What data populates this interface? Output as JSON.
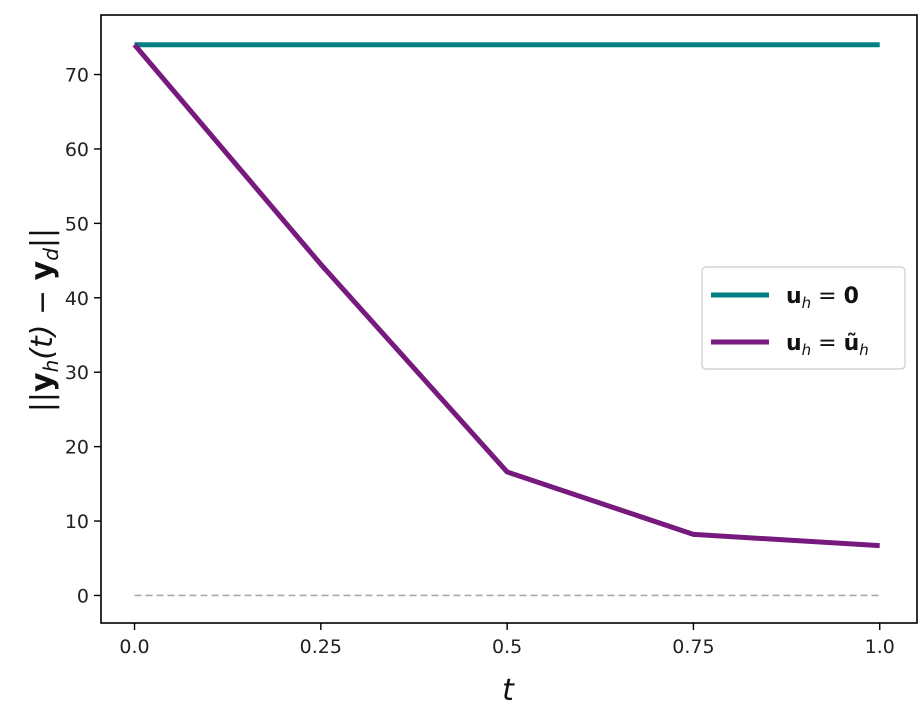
{
  "chart_data": {
    "type": "line",
    "x": [
      0.0,
      0.25,
      0.5,
      0.75,
      1.0
    ],
    "x_tick_labels": [
      "0.0",
      "0.25",
      "0.5",
      "0.75",
      "1.0"
    ],
    "y_ticks": [
      0,
      10,
      20,
      30,
      40,
      50,
      60,
      70
    ],
    "y_tick_labels": [
      "0",
      "10",
      "20",
      "30",
      "40",
      "50",
      "60",
      "70"
    ],
    "xlim": [
      -0.045,
      1.05
    ],
    "ylim": [
      -3.7,
      78
    ],
    "xlabel": "t",
    "ylabel": {
      "prefix": "||",
      "y": "y",
      "sub_h": "h",
      "arg": "(t) − ",
      "yd": "y",
      "sub_d": "d",
      "suffix": "||"
    },
    "series": [
      {
        "name": "u_h = 0",
        "color": "#008080",
        "values": [
          74.0,
          74.0,
          74.0,
          74.0,
          74.0
        ]
      },
      {
        "name": "u_h = ũ_h",
        "color": "#771a7e",
        "values": [
          74.0,
          44.5,
          16.6,
          8.2,
          6.7
        ]
      }
    ],
    "reference_line": {
      "y": 0,
      "style": "dashed",
      "color": "#aaaaaa"
    },
    "legend": {
      "placement": "center-right",
      "entries": [
        {
          "u": "u",
          "sub": "h",
          "rhs": "0"
        },
        {
          "u": "u",
          "sub": "h",
          "rhs": "ũ",
          "rhs_sub": "h"
        }
      ]
    },
    "grid": false
  }
}
